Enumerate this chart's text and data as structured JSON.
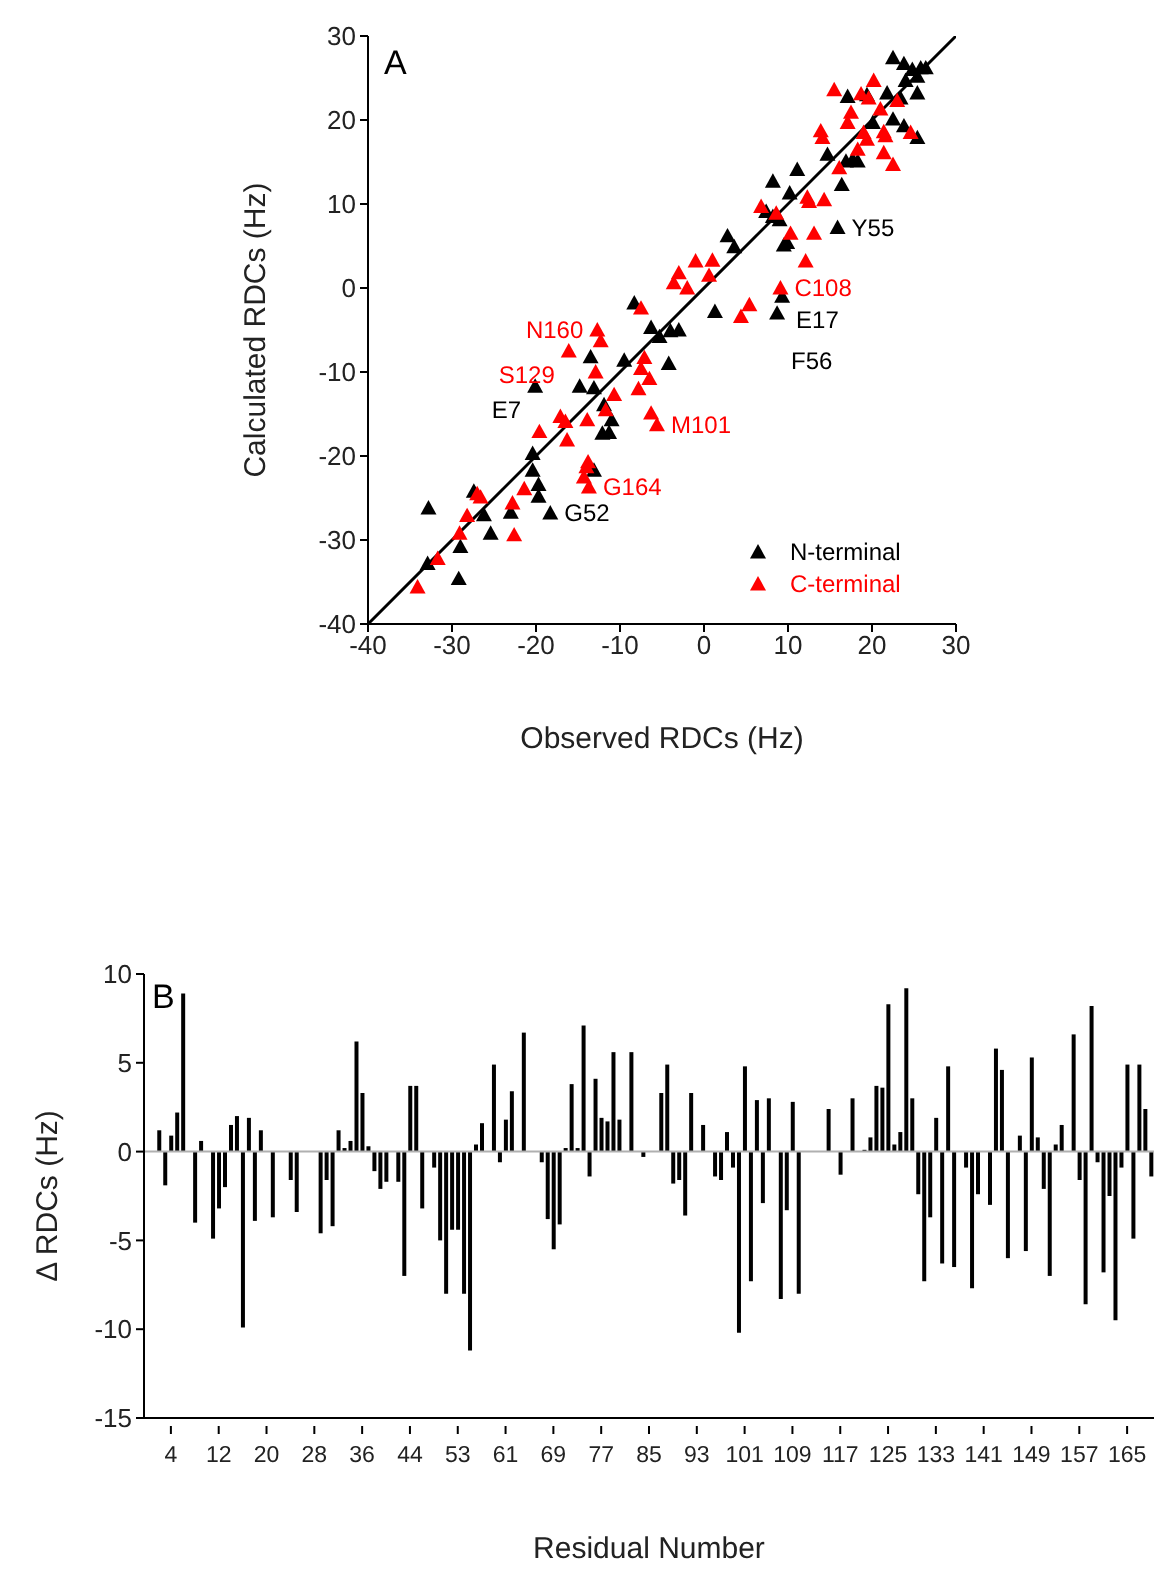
{
  "chart_data": [
    {
      "type": "scatter",
      "title": "A",
      "xlabel": "Observed RDCs (Hz)",
      "ylabel": "Calculated RDCs (Hz)",
      "xlim": [
        -40,
        30
      ],
      "ylim": [
        -40,
        30
      ],
      "xticks": [
        -40,
        -30,
        -20,
        -10,
        0,
        10,
        20,
        30
      ],
      "yticks": [
        -40,
        -30,
        -20,
        -10,
        0,
        10,
        20,
        30
      ],
      "marker": "triangle",
      "legend": "bottom right",
      "grid": false,
      "series": [
        {
          "name": "N-terminal",
          "color": "#000000",
          "x": [
            22.5,
            23.8,
            24.8,
            25.8,
            26.4,
            25.4,
            24.0,
            21.8,
            19.4,
            17.1,
            25.4,
            23.4,
            22.5,
            20.1,
            23.8,
            25.4,
            14.7,
            16.9,
            17.7,
            18.3,
            16.4,
            11.1,
            8.2,
            10.2,
            7.4,
            8.2,
            9.0,
            9.5,
            9.9,
            15.9,
            2.8,
            3.6,
            9.3,
            8.7,
            1.3,
            -8.3,
            -6.3,
            -5.3,
            -4.0,
            -3.0,
            -4.2,
            -9.5,
            -13.5,
            -14.8,
            -13.1,
            -20.1,
            -11.9,
            -11.0,
            -12.1,
            -11.3,
            -20.4,
            -20.4,
            -13.1,
            -19.7,
            -19.7,
            -18.3,
            -23.0,
            -26.2,
            -27.4,
            -25.4,
            -29.0,
            -32.8,
            -32.9,
            -29.2
          ],
          "values": [
            27.4,
            26.7,
            26.0,
            26.2,
            26.2,
            25.2,
            24.7,
            23.2,
            23.0,
            22.8,
            23.2,
            22.6,
            20.1,
            19.7,
            19.3,
            17.9,
            15.9,
            15.1,
            15.3,
            15.1,
            12.3,
            14.1,
            12.7,
            11.3,
            9.1,
            8.5,
            8.1,
            5.1,
            5.4,
            7.2,
            6.2,
            4.9,
            -1.0,
            -3.0,
            -2.8,
            -1.8,
            -4.7,
            -5.8,
            -5.1,
            -5.0,
            -9.0,
            -8.6,
            -8.2,
            -11.7,
            -11.9,
            -11.7,
            -13.9,
            -15.7,
            -17.3,
            -17.2,
            -19.7,
            -21.7,
            -21.7,
            -23.4,
            -24.8,
            -26.8,
            -26.7,
            -27.0,
            -24.2,
            -29.2,
            -30.8,
            -26.2,
            -32.8,
            -34.6
          ]
        },
        {
          "name": "C-terminal",
          "color": "#ff0000",
          "x": [
            15.5,
            20.2,
            18.7,
            19.6,
            17.5,
            17.1,
            21.0,
            23.0,
            13.9,
            14.1,
            19.0,
            19.4,
            21.4,
            21.6,
            24.6,
            18.3,
            21.4,
            22.5,
            16.1,
            6.8,
            8.6,
            12.3,
            12.5,
            14.3,
            10.3,
            13.1,
            12.1,
            -1.0,
            1.0,
            -3.0,
            -3.6,
            -2.0,
            0.6,
            9.1,
            4.4,
            5.4,
            -7.5,
            -12.7,
            -12.3,
            -16.1,
            -12.9,
            -7.5,
            -6.5,
            -7.8,
            -7.1,
            -10.7,
            -11.7,
            -6.3,
            -5.6,
            -13.9,
            -17.1,
            -16.5,
            -16.3,
            -19.6,
            -14.3,
            -14.0,
            -13.8,
            -13.7,
            -21.4,
            -22.8,
            -22.6,
            -26.6,
            -28.2,
            -29.1,
            -31.7,
            -34.1,
            -27.0
          ],
          "values": [
            23.6,
            24.7,
            23.1,
            22.6,
            20.9,
            19.7,
            21.3,
            22.3,
            18.7,
            17.9,
            18.5,
            17.7,
            18.6,
            18.1,
            18.5,
            16.5,
            16.1,
            14.7,
            14.3,
            9.7,
            8.9,
            10.8,
            10.3,
            10.5,
            6.5,
            6.5,
            3.2,
            3.2,
            3.3,
            1.8,
            0.6,
            0.0,
            1.5,
            0.0,
            -3.4,
            -2.0,
            -2.4,
            -5.0,
            -6.3,
            -7.5,
            -10.0,
            -9.6,
            -10.8,
            -12.0,
            -8.3,
            -12.7,
            -14.5,
            -14.9,
            -16.3,
            -15.7,
            -15.3,
            -15.9,
            -18.1,
            -17.1,
            -22.5,
            -21.3,
            -20.7,
            -23.7,
            -23.9,
            -25.6,
            -29.4,
            -24.9,
            -27.1,
            -29.2,
            -32.2,
            -35.6,
            -24.5
          ]
        },
        {
          "type": "line",
          "color": "#000000",
          "marker": "none",
          "x": [
            -40,
            30
          ],
          "values": [
            -40,
            30
          ]
        }
      ],
      "annotations": [
        {
          "text": "Y55",
          "x": 15.9,
          "y": 7.2
        },
        {
          "text": "C108",
          "x": 9.1,
          "y": 0.0
        },
        {
          "text": "E17",
          "x": 9.3,
          "y": -1.0
        },
        {
          "text": "F56",
          "x": 8.7,
          "y": -3.0
        },
        {
          "text": "N160",
          "x": -12.7,
          "y": -5.0
        },
        {
          "text": "S129",
          "x": -16.1,
          "y": -7.5
        },
        {
          "text": "E7",
          "x": -20.1,
          "y": -11.7
        },
        {
          "text": "M101",
          "x": -5.6,
          "y": -16.3
        },
        {
          "text": "G164",
          "x": -13.7,
          "y": -23.7
        },
        {
          "text": "G52",
          "x": -18.3,
          "y": -26.8
        }
      ]
    },
    {
      "type": "bar",
      "title": "B",
      "xlabel": "Residual Number",
      "ylabel": "Δ RDCs (Hz)",
      "color": "#000000",
      "ylim": [
        -15,
        10
      ],
      "yticks": [
        -15,
        -10,
        -5,
        0,
        5,
        10
      ],
      "grid": false,
      "ref_lines": [
        {
          "axis": "y",
          "value": 0,
          "color": "#b0b0b0"
        }
      ],
      "categories": [
        null,
        null,
        null,
        null,
        "4",
        null,
        null,
        null,
        null,
        null,
        null,
        null,
        "12",
        null,
        null,
        null,
        null,
        null,
        null,
        null,
        "20",
        null,
        null,
        null,
        null,
        null,
        null,
        null,
        "28",
        null,
        null,
        null,
        null,
        null,
        null,
        null,
        "36",
        null,
        null,
        null,
        null,
        null,
        null,
        null,
        "44",
        null,
        null,
        null,
        null,
        null,
        null,
        null,
        "53",
        null,
        null,
        null,
        null,
        null,
        null,
        null,
        "61",
        null,
        null,
        null,
        null,
        null,
        null,
        null,
        "69",
        null,
        null,
        null,
        null,
        null,
        null,
        null,
        "77",
        null,
        null,
        null,
        null,
        null,
        null,
        null,
        "85",
        null,
        null,
        null,
        null,
        null,
        null,
        null,
        "93",
        null,
        null,
        null,
        null,
        null,
        null,
        null,
        "101",
        null,
        null,
        null,
        null,
        null,
        null,
        null,
        "109",
        null,
        null,
        null,
        null,
        null,
        null,
        null,
        "117",
        null,
        null,
        null,
        null,
        null,
        null,
        null,
        "125",
        null,
        null,
        null,
        null,
        null,
        null,
        null,
        "133",
        null,
        null,
        null,
        null,
        null,
        null,
        null,
        "141",
        null,
        null,
        null,
        null,
        null,
        null,
        null,
        "149",
        null,
        null,
        null,
        null,
        null,
        null,
        null,
        "157",
        null,
        null,
        null,
        null,
        null,
        null,
        null,
        "165",
        null,
        null,
        null,
        null
      ],
      "values": [
        null,
        null,
        1.2,
        -1.9,
        0.9,
        2.2,
        8.9,
        null,
        -4.0,
        0.6,
        null,
        -4.9,
        -3.2,
        -2.0,
        1.5,
        2.0,
        -9.9,
        1.9,
        -3.9,
        1.2,
        null,
        -3.7,
        null,
        null,
        -1.6,
        -3.4,
        null,
        null,
        null,
        -4.6,
        -1.6,
        -4.2,
        1.2,
        0.2,
        0.6,
        6.2,
        3.3,
        0.3,
        -1.1,
        -2.1,
        -1.7,
        null,
        -1.7,
        -7.0,
        3.7,
        3.7,
        -3.2,
        null,
        -0.9,
        -5.0,
        -8.0,
        -4.4,
        -4.4,
        -8.0,
        -11.2,
        0.4,
        1.6,
        null,
        4.9,
        -0.6,
        1.8,
        3.4,
        null,
        6.7,
        null,
        null,
        -0.6,
        -3.8,
        -5.5,
        -4.1,
        0.2,
        3.8,
        0.2,
        7.1,
        -1.4,
        4.1,
        1.9,
        1.7,
        5.6,
        1.8,
        null,
        5.6,
        null,
        -0.3,
        null,
        null,
        3.3,
        4.9,
        -1.8,
        -1.6,
        -3.6,
        3.3,
        null,
        1.5,
        null,
        -1.4,
        -1.6,
        1.1,
        -0.9,
        -10.2,
        4.8,
        -7.3,
        2.9,
        -2.9,
        3.0,
        null,
        -8.3,
        -3.3,
        2.8,
        -8.0,
        null,
        null,
        null,
        null,
        2.4,
        null,
        -1.3,
        null,
        3.0,
        null,
        0.1,
        0.8,
        3.7,
        3.6,
        8.3,
        0.4,
        1.1,
        9.2,
        3.0,
        -2.4,
        -7.3,
        -3.7,
        1.9,
        -6.3,
        4.8,
        -6.5,
        null,
        -0.9,
        -7.7,
        -2.4,
        null,
        -3.0,
        5.8,
        4.6,
        -6.0,
        null,
        0.9,
        -5.6,
        5.3,
        0.8,
        -2.1,
        -7.0,
        0.4,
        1.5,
        null,
        6.6,
        -1.6,
        -8.6,
        8.2,
        -0.6,
        -6.8,
        -2.5,
        -9.5,
        -0.9,
        4.9,
        -4.9,
        4.9,
        2.4,
        -1.4
      ]
    }
  ]
}
